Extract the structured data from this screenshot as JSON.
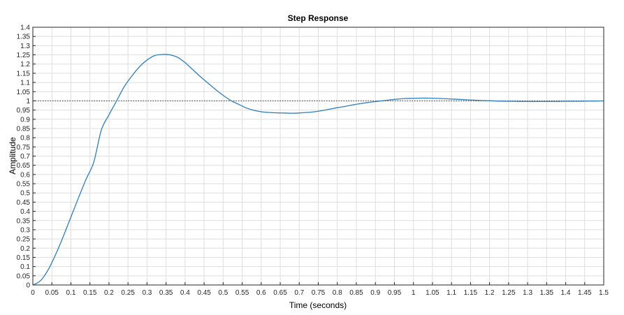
{
  "chart_data": {
    "type": "line",
    "title": "Step Response",
    "xlabel": "Time (seconds)",
    "ylabel": "Amplitude",
    "xlim": [
      0,
      1.5
    ],
    "ylim": [
      0,
      1.4
    ],
    "x_ticks": [
      "0",
      "0.05",
      "0.1",
      "0.15",
      "0.2",
      "0.25",
      "0.3",
      "0.35",
      "0.4",
      "0.45",
      "0.5",
      "0.55",
      "0.6",
      "0.65",
      "0.7",
      "0.75",
      "0.8",
      "0.85",
      "0.9",
      "0.95",
      "1",
      "1.05",
      "1.1",
      "1.15",
      "1.2",
      "1.25",
      "1.3",
      "1.35",
      "1.4",
      "1.45",
      "1.5"
    ],
    "y_ticks": [
      "0",
      "0.05",
      "0.1",
      "0.15",
      "0.2",
      "0.25",
      "0.3",
      "0.35",
      "0.4",
      "0.45",
      "0.5",
      "0.55",
      "0.6",
      "0.65",
      "0.7",
      "0.75",
      "0.8",
      "0.85",
      "0.9",
      "0.95",
      "1",
      "1.05",
      "1.1",
      "1.15",
      "1.2",
      "1.25",
      "1.3",
      "1.35",
      "1.4"
    ],
    "grid": true,
    "reference_line": {
      "y": 1,
      "style": "dotted"
    },
    "series": [
      {
        "color": "#2e7ebc",
        "x": [
          0,
          0.02,
          0.04,
          0.06,
          0.08,
          0.1,
          0.12,
          0.14,
          0.16,
          0.18,
          0.2,
          0.22,
          0.24,
          0.26,
          0.28,
          0.3,
          0.32,
          0.34,
          0.35,
          0.36,
          0.38,
          0.4,
          0.42,
          0.44,
          0.46,
          0.48,
          0.5,
          0.52,
          0.54,
          0.56,
          0.58,
          0.6,
          0.62,
          0.64,
          0.66,
          0.68,
          0.7,
          0.72,
          0.74,
          0.76,
          0.78,
          0.8,
          0.82,
          0.84,
          0.86,
          0.88,
          0.9,
          0.92,
          0.94,
          0.96,
          0.98,
          1.0,
          1.02,
          1.04,
          1.06,
          1.08,
          1.1,
          1.12,
          1.14,
          1.16,
          1.18,
          1.2,
          1.22,
          1.24,
          1.26,
          1.28,
          1.3,
          1.32,
          1.34,
          1.36,
          1.38,
          1.4,
          1.42,
          1.44,
          1.46,
          1.48,
          1.5
        ],
        "y": [
          0,
          0.023,
          0.082,
          0.166,
          0.264,
          0.369,
          0.474,
          0.575,
          0.667,
          0.842,
          0.924,
          1.0,
          1.077,
          1.135,
          1.185,
          1.222,
          1.246,
          1.252,
          1.252,
          1.25,
          1.237,
          1.208,
          1.17,
          1.132,
          1.097,
          1.062,
          1.03,
          1.002,
          0.982,
          0.962,
          0.949,
          0.941,
          0.937,
          0.935,
          0.934,
          0.933,
          0.934,
          0.937,
          0.941,
          0.947,
          0.955,
          0.963,
          0.97,
          0.978,
          0.985,
          0.991,
          0.996,
          1.001,
          1.006,
          1.01,
          1.013,
          1.014,
          1.015,
          1.015,
          1.014,
          1.012,
          1.01,
          1.008,
          1.006,
          1.004,
          1.002,
          1.001,
          0.999,
          0.998,
          0.998,
          0.997,
          0.997,
          0.997,
          0.997,
          0.997,
          0.997,
          0.998,
          0.998,
          0.998,
          0.999,
          0.999,
          1.0
        ]
      }
    ]
  }
}
